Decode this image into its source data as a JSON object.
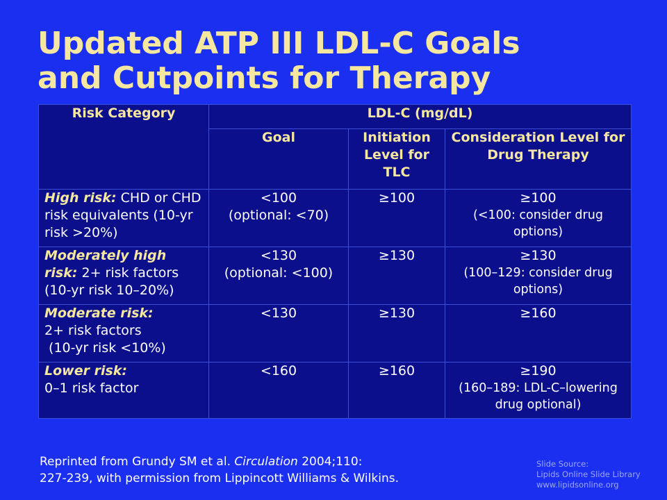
{
  "title": {
    "line1": "Updated ATP III LDL-C Goals",
    "line2": "and Cutpoints for Therapy"
  },
  "table": {
    "group_header": "LDL-C (mg/dL)",
    "col_risk": "Risk Category",
    "col_goal": "Goal",
    "col_tlc": "Initiation Level for TLC",
    "col_drug": "Consideration Level for Drug Therapy",
    "rows": [
      {
        "label": "High risk:",
        "desc": " CHD or CHD risk equivalents (10-yr risk >20%)",
        "goal": "<100",
        "goal_opt": "(optional: <70)",
        "tlc": "≥100",
        "drug": "≥100",
        "drug_note": "(<100: consider drug options)"
      },
      {
        "label": "Moderately high risk:",
        "desc": " 2+ risk factors (10-yr risk 10–20%)",
        "goal": "<130",
        "goal_opt": "(optional: <100)",
        "tlc": "≥130",
        "drug": "≥130",
        "drug_note": "(100–129: consider drug options)"
      },
      {
        "label": "Moderate risk:",
        "desc": "2+ risk factors",
        "desc2": " (10-yr risk <10%)",
        "goal": "<130",
        "tlc": "≥130",
        "drug": "≥160"
      },
      {
        "label": "Lower risk:",
        "desc": "0–1 risk factor",
        "goal": "<160",
        "tlc": "≥160",
        "drug": "≥190",
        "drug_note": "(160–189: LDL-C–lowering drug optional)"
      }
    ]
  },
  "reference": {
    "prefix": "Reprinted from Grundy SM et al. ",
    "journal": "Circulation",
    "suffix": " 2004;110:",
    "line2": "227-239, with permission from Lippincott Williams & Wilkins."
  },
  "source": {
    "line1": "Slide Source:",
    "line2": "Lipids Online Slide Library",
    "line3": "www.lipidsonline.org"
  },
  "colors": {
    "background": "#1a2ff0",
    "table_fill": "#0c0f8c",
    "accent_yellow": "#f5e6a0"
  }
}
